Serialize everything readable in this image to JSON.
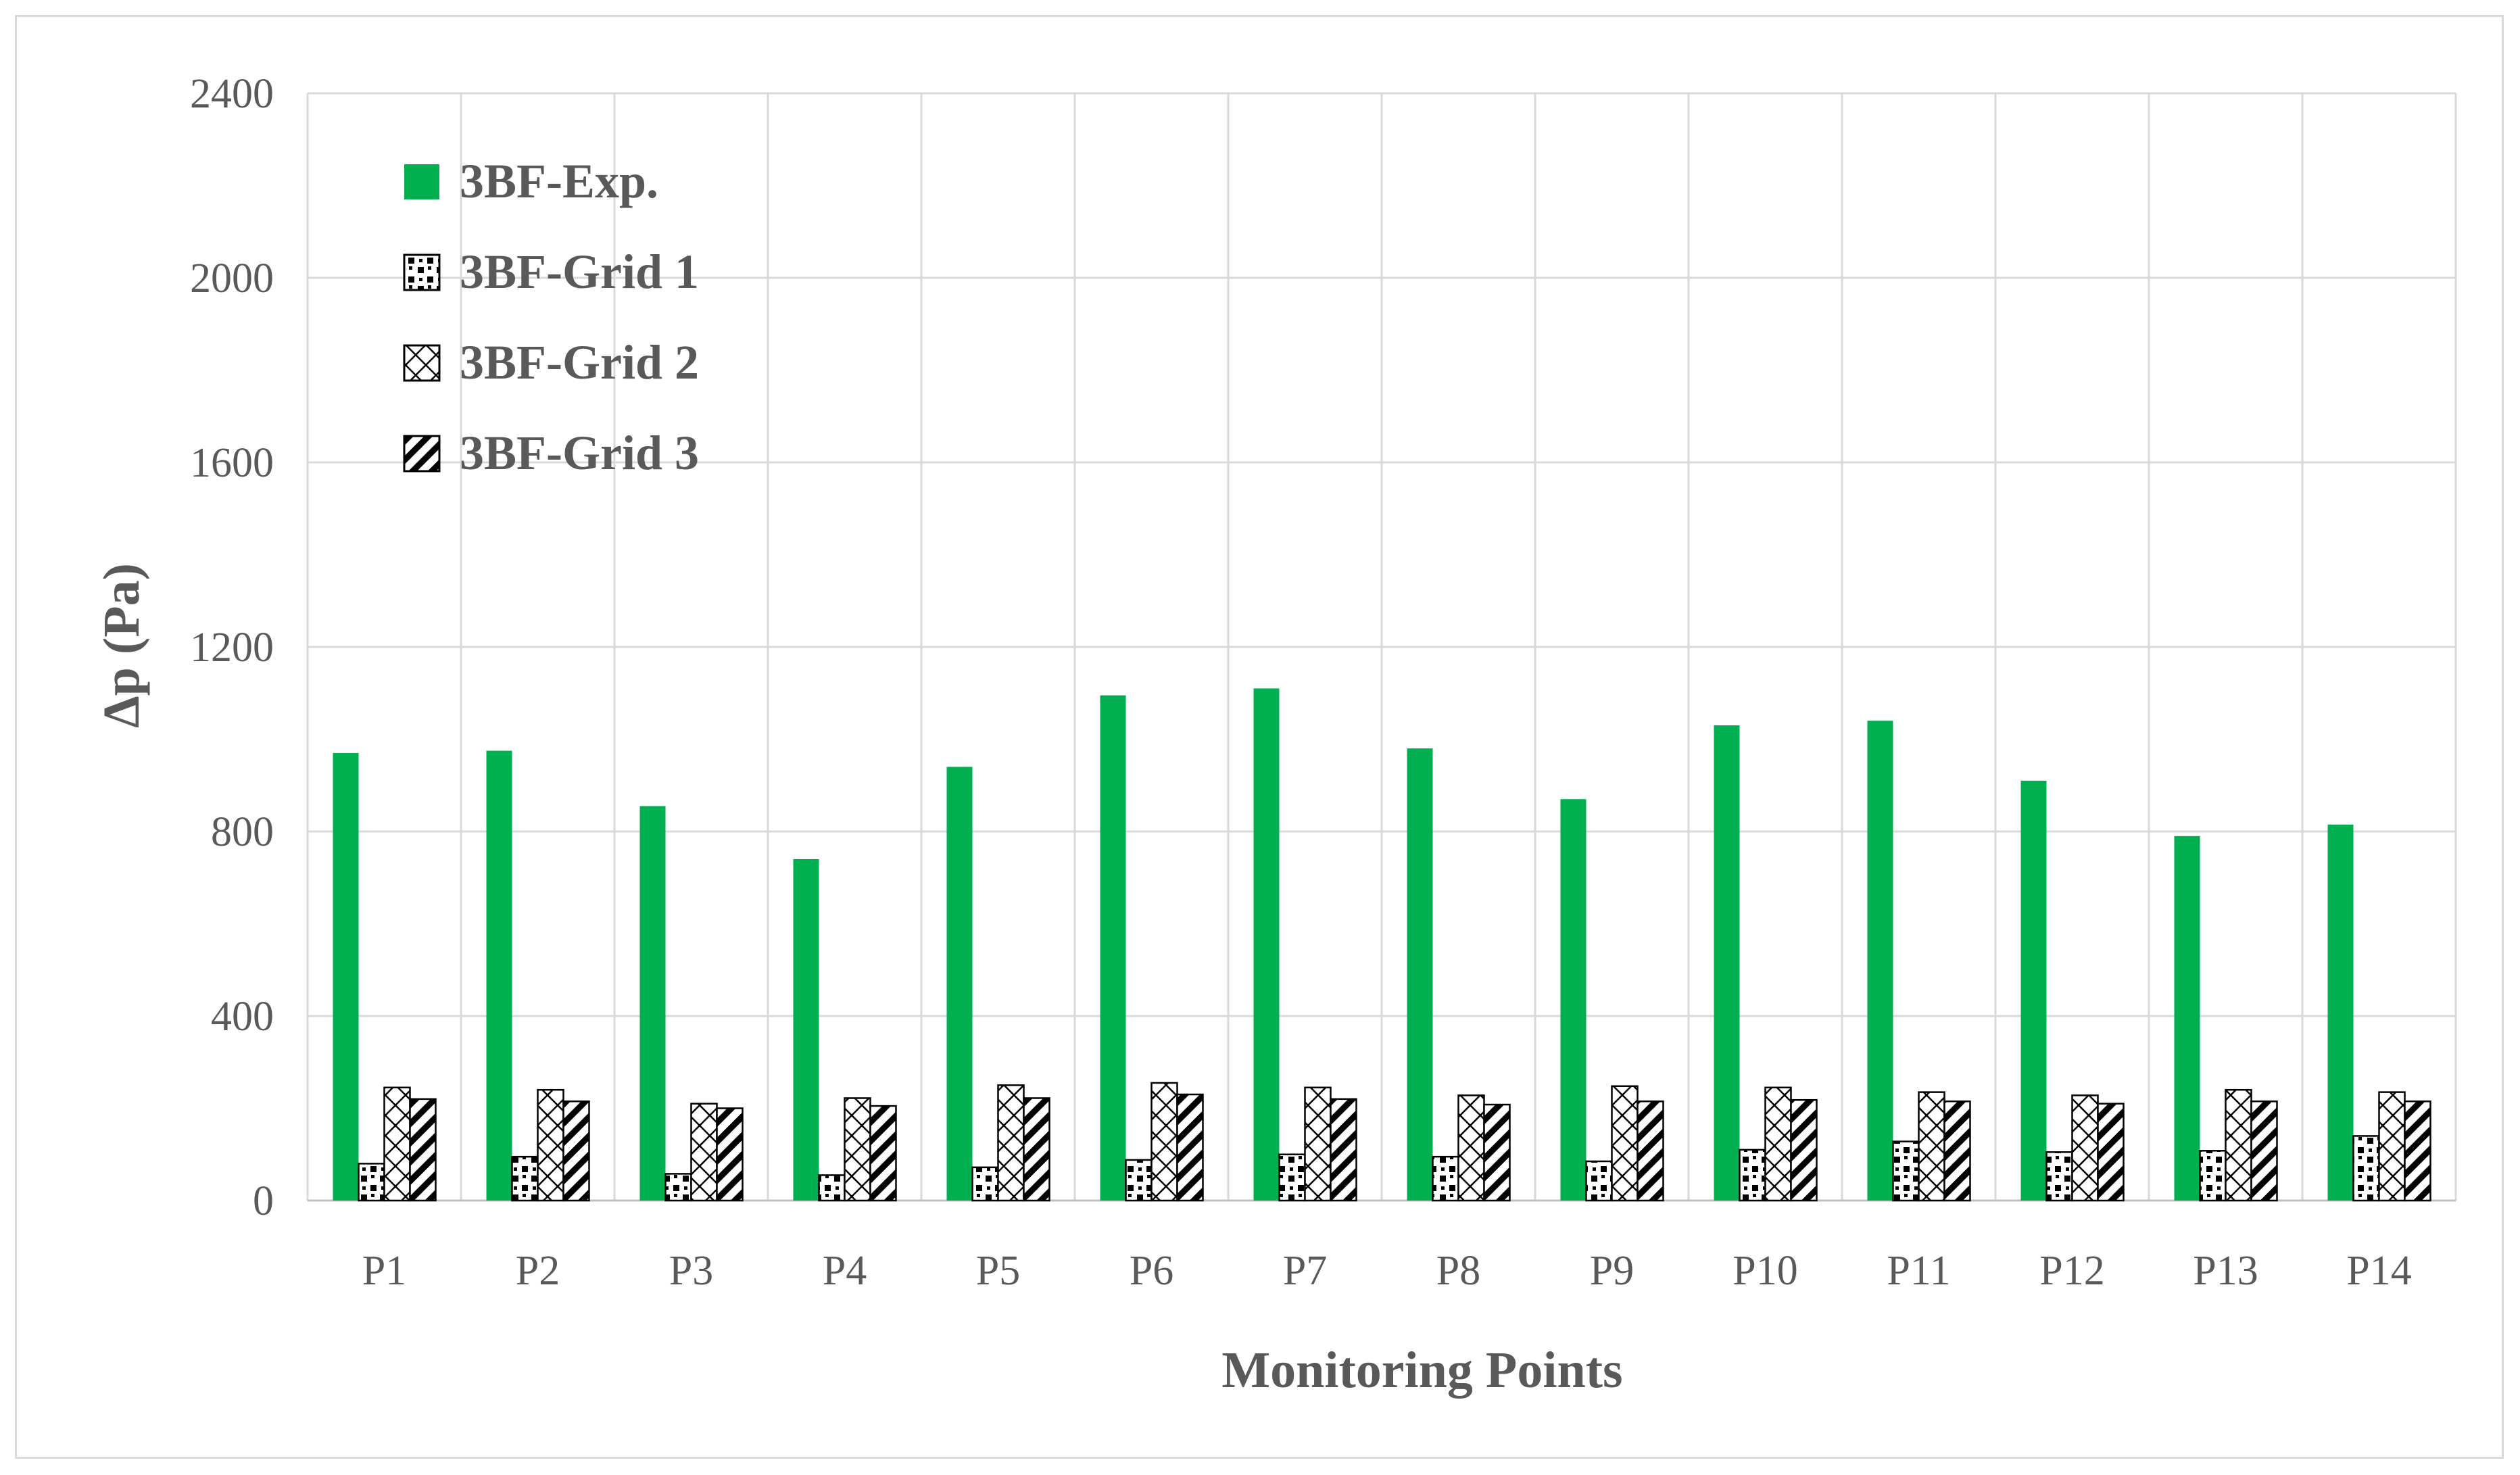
{
  "chart_data": {
    "type": "bar",
    "title": "",
    "xlabel": "Monitoring Points",
    "ylabel": "Δp (Pa)",
    "ylim": [
      0,
      2400
    ],
    "yticks": [
      "0",
      "400",
      "800",
      "1200",
      "1600",
      "2000",
      "2400"
    ],
    "grid": true,
    "legend_position": "top-left",
    "categories": [
      "P1",
      "P2",
      "P3",
      "P4",
      "P5",
      "P6",
      "P7",
      "P8",
      "P9",
      "P10",
      "P11",
      "P12",
      "P13",
      "P14"
    ],
    "series": [
      {
        "name": "3BF-Exp.",
        "fill": "solid",
        "color": "#00b050",
        "values": [
          970,
          975,
          855,
          740,
          940,
          1095,
          1110,
          980,
          870,
          1030,
          1040,
          910,
          790,
          815
        ]
      },
      {
        "name": "3BF-Grid 1",
        "fill": "dots",
        "color": "#000000",
        "values": [
          80,
          95,
          58,
          55,
          72,
          88,
          100,
          95,
          85,
          110,
          128,
          105,
          108,
          140
        ]
      },
      {
        "name": "3BF-Grid 2",
        "fill": "diamond-lattice",
        "color": "#000000",
        "values": [
          245,
          240,
          210,
          222,
          250,
          255,
          245,
          228,
          248,
          245,
          235,
          228,
          240,
          235
        ]
      },
      {
        "name": "3BF-Grid 3",
        "fill": "diagonal-stripes",
        "color": "#000000",
        "values": [
          220,
          215,
          200,
          205,
          222,
          230,
          220,
          208,
          215,
          218,
          215,
          210,
          215,
          215
        ]
      }
    ]
  }
}
